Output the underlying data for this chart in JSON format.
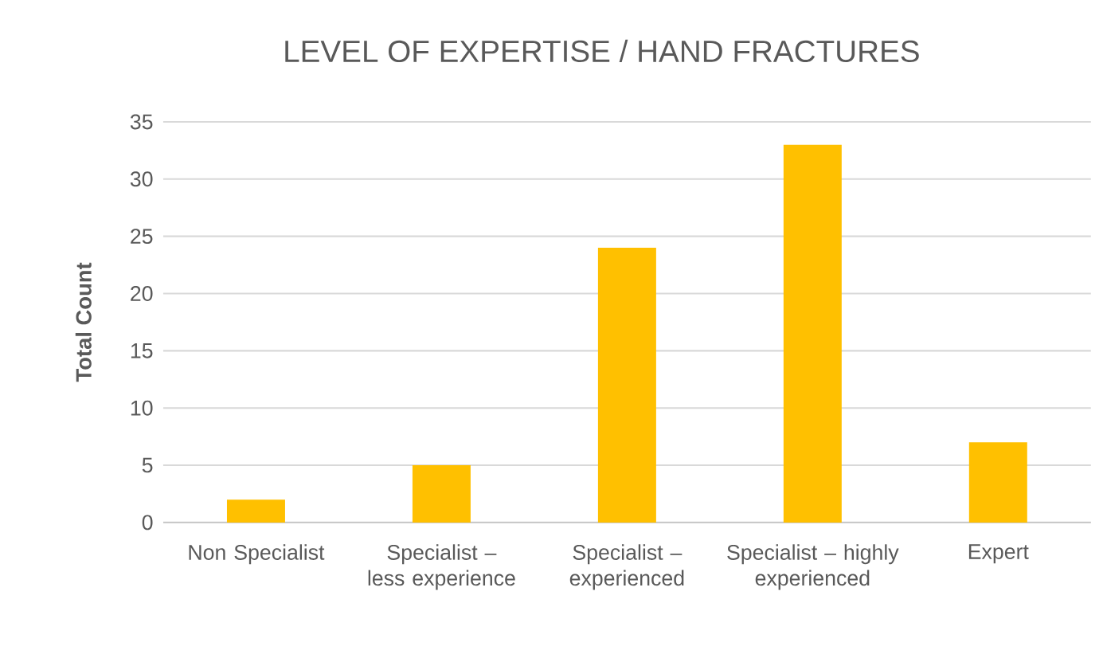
{
  "chart_data": {
    "type": "bar",
    "title": "LEVEL OF EXPERTISE / HAND FRACTURES",
    "ylabel": "Total Count",
    "categories": [
      "Non Specialist",
      "Specialist – less experience",
      "Specialist – experienced",
      "Specialist – highly experienced",
      "Expert"
    ],
    "values": [
      2,
      5,
      24,
      33,
      7
    ],
    "color": "#ffc000",
    "ylim": [
      0,
      35
    ],
    "yticks": [
      0,
      5,
      10,
      15,
      20,
      25,
      30,
      35
    ],
    "grid": "y"
  }
}
